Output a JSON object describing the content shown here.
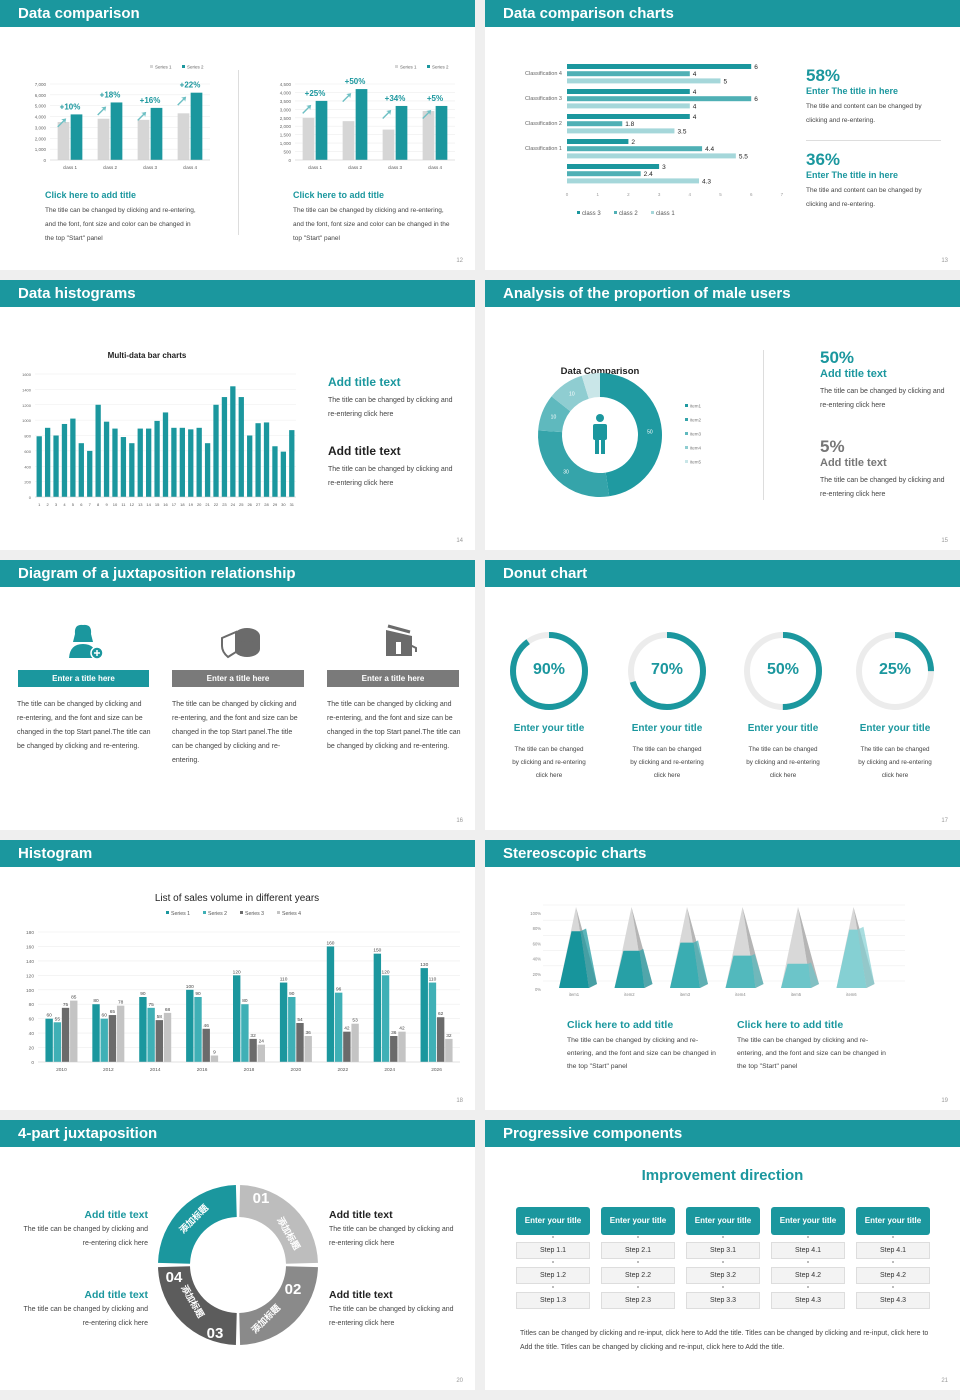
{
  "colors": {
    "teal": "#1b979e",
    "teal2": "#3aa9ae",
    "teal3": "#6fc0c4",
    "gray": "#d6d6d6",
    "dark": "#6b6b6b",
    "light": "#bdbdbd"
  },
  "s12": {
    "header": "Data comparison",
    "page": "12",
    "left": {
      "title": "Click here to add title",
      "text": "The title can be changed by clicking and re-entering, and the font, font size and color can be changed in the top \"Start\" panel"
    },
    "right": {
      "title": "Click here to add title",
      "text": "The title can be changed by clicking and re-entering, and the font, font size and color can be changed in the top \"Start\" panel"
    }
  },
  "s13": {
    "header": "Data comparison charts",
    "page": "13",
    "stats": [
      {
        "value": "58%",
        "title": "Enter The title in here",
        "text": "The title and content can be changed by clicking and re-entering."
      },
      {
        "value": "36%",
        "title": "Enter The title in here",
        "text": "The title and content can be changed by clicking and re-entering."
      }
    ]
  },
  "s14": {
    "header": "Data histograms",
    "page": "14",
    "blocks": [
      {
        "title": "Add title text",
        "text": "The title can be changed by clicking and re-entering click here"
      },
      {
        "title": "Add title text",
        "text": "The title can be changed by clicking and re-entering click here"
      }
    ]
  },
  "s15": {
    "header": "Analysis of the proportion of male users",
    "page": "15",
    "icon": "male-user-icon",
    "stats": [
      {
        "value": "50%",
        "title": "Add title text",
        "text": "The title can be changed by clicking and re-entering click here"
      },
      {
        "value": "5%",
        "title": "Add title text",
        "text": "The title can be changed by clicking and re-entering click here"
      }
    ]
  },
  "s16": {
    "header": "Diagram of a juxtaposition relationship",
    "page": "16",
    "cols": [
      {
        "icon": "add-user-icon",
        "title": "Enter a title here",
        "text": "The title can be changed by clicking and re-entering, and the font and size can be changed in the top Start panel.The title can be changed by clicking and re-entering."
      },
      {
        "icon": "pie-chart-icon",
        "title": "Enter a title here",
        "text": "The title can be changed by clicking and re-entering, and the font and size can be changed in the top Start panel.The title can be changed by clicking and re-entering."
      },
      {
        "icon": "building-chart-icon",
        "title": "Enter a title here",
        "text": "The title can be changed by clicking and re-entering, and the font and size can be changed in the top Start panel.The title can be changed by clicking and re-entering."
      }
    ]
  },
  "s17": {
    "header": "Donut chart",
    "page": "17",
    "rings": [
      {
        "label": "90%",
        "value": 90,
        "title": "Enter your title",
        "text": "The title can be changed by clicking and re-entering click here"
      },
      {
        "label": "70%",
        "value": 70,
        "title": "Enter your title",
        "text": "The title can be changed by clicking and re-entering click here"
      },
      {
        "label": "50%",
        "value": 50,
        "title": "Enter your title",
        "text": "The title can be changed by clicking and re-entering click here"
      },
      {
        "label": "25%",
        "value": 25,
        "title": "Enter your title",
        "text": "The title can be changed by clicking and re-entering click here"
      }
    ]
  },
  "s18": {
    "header": "Histogram",
    "page": "18"
  },
  "s19": {
    "header": "Stereoscopic charts",
    "page": "19",
    "blocks": [
      {
        "title": "Click here to add title",
        "text": "The title can be changed by clicking and re-entering, and the font and size can be changed in the top \"Start\" panel"
      },
      {
        "title": "Click here to add title",
        "text": "The title can be changed by clicking and re-entering, and the font and size can be changed in the top \"Start\" panel"
      }
    ]
  },
  "s20": {
    "header": "4-part juxtaposition",
    "page": "20",
    "segments": [
      {
        "num": "01",
        "label": "添加标题"
      },
      {
        "num": "02",
        "label": "添加标题"
      },
      {
        "num": "03",
        "label": "添加标题"
      },
      {
        "num": "04",
        "label": "添加标题"
      }
    ],
    "blocks": [
      {
        "title": "Add title text",
        "text": "The title can be changed by clicking and re-entering click here"
      },
      {
        "title": "Add title text",
        "text": "The title can be changed by clicking and re-entering click here"
      },
      {
        "title": "Add title text",
        "text": "The title can be changed by clicking and re-entering click here"
      },
      {
        "title": "Add title text",
        "text": "The title can be changed by clicking and re-entering click here"
      }
    ]
  },
  "s21": {
    "header": "Progressive components",
    "page": "21",
    "title": "Improvement direction",
    "columns": [
      {
        "title": "Enter your title",
        "steps": [
          "Step 1.1",
          "Step 1.2",
          "Step 1.3"
        ]
      },
      {
        "title": "Enter your title",
        "steps": [
          "Step 2.1",
          "Step 2.2",
          "Step 2.3"
        ]
      },
      {
        "title": "Enter your title",
        "steps": [
          "Step 3.1",
          "Step 3.2",
          "Step 3.3"
        ]
      },
      {
        "title": "Enter your title",
        "steps": [
          "Step 4.1",
          "Step 4.2",
          "Step 4.3"
        ]
      },
      {
        "title": "Enter your title",
        "steps": [
          "Step 4.1",
          "Step 4.2",
          "Step 4.3"
        ]
      }
    ],
    "text": "Titles can be changed by clicking and re-input, click here to Add the title. Titles can be changed by clicking and re-input, click here to Add the title. Titles can be changed by clicking and re-input, click here to Add the title."
  },
  "chart_data": [
    {
      "id": "s12a",
      "type": "bar",
      "categories": [
        "class 1",
        "class 2",
        "class 3",
        "class 4"
      ],
      "series": [
        {
          "name": "Series 1",
          "values": [
            3500,
            3800,
            3700,
            4300
          ]
        },
        {
          "name": "Series 2",
          "values": [
            4200,
            5300,
            4800,
            6200
          ]
        }
      ],
      "annotations": [
        "+10%",
        "+18%",
        "+16%",
        "+22%"
      ],
      "ylim": [
        0,
        7000
      ],
      "yticks": [
        "0",
        "1,000",
        "2,000",
        "3,000",
        "4,000",
        "5,000",
        "6,000",
        "7,000"
      ],
      "legend": "top-right",
      "grid": true
    },
    {
      "id": "s12b",
      "type": "bar",
      "categories": [
        "class 1",
        "class 2",
        "class 3",
        "class 4"
      ],
      "series": [
        {
          "name": "Series 1",
          "values": [
            2500,
            2300,
            1800,
            2900
          ]
        },
        {
          "name": "Series 2",
          "values": [
            3500,
            4200,
            3200,
            3200
          ]
        }
      ],
      "annotations": [
        "+25%",
        "+50%",
        "+34%",
        "+5%"
      ],
      "ylim": [
        0,
        4500
      ],
      "yticks": [
        "0",
        "500",
        "1,000",
        "1,500",
        "2,000",
        "2,500",
        "3,000",
        "3,500",
        "4,000",
        "4,500"
      ],
      "legend": "top-right",
      "grid": true
    },
    {
      "id": "s13",
      "type": "bar",
      "orientation": "horizontal",
      "categories": [
        "Classification 4",
        "Classification 3",
        "Classification 2",
        "Classification 1",
        ""
      ],
      "series": [
        {
          "name": "class 3",
          "values": [
            6,
            4,
            4,
            2,
            3
          ]
        },
        {
          "name": "class 2",
          "values": [
            4,
            6,
            1.8,
            4.4,
            2.4
          ]
        },
        {
          "name": "class 1",
          "values": [
            5,
            4,
            3.5,
            5.5,
            4.3
          ]
        }
      ],
      "xlim": [
        0,
        7
      ],
      "xticks": [
        "0",
        "1",
        "2",
        "3",
        "4",
        "5",
        "6",
        "7"
      ],
      "legend": "bottom"
    },
    {
      "id": "s14",
      "type": "bar",
      "title": "Multi-data bar charts",
      "categories": [
        "1",
        "2",
        "3",
        "4",
        "5",
        "6",
        "7",
        "8",
        "9",
        "10",
        "11",
        "12",
        "13",
        "14",
        "15",
        "16",
        "17",
        "18",
        "19",
        "20",
        "21",
        "22",
        "23",
        "24",
        "25",
        "26",
        "27",
        "28",
        "29",
        "30",
        "31"
      ],
      "values": [
        790,
        900,
        800,
        950,
        1020,
        700,
        600,
        1200,
        980,
        890,
        780,
        700,
        890,
        890,
        990,
        1100,
        900,
        900,
        880,
        900,
        700,
        1200,
        1300,
        1440,
        1300,
        800,
        960,
        970,
        660,
        590,
        870
      ],
      "ylim": [
        0,
        1600
      ],
      "yticks": [
        "0",
        "200",
        "400",
        "600",
        "800",
        "1000",
        "1200",
        "1400",
        "1600"
      ],
      "grid": true
    },
    {
      "id": "s15",
      "type": "pie",
      "title": "Data Comparison",
      "categories": [
        "item1",
        "item2",
        "item3",
        "item4",
        "item5"
      ],
      "values": [
        50,
        30,
        10,
        10,
        5
      ],
      "labels": [
        "50",
        "30",
        "10",
        "10",
        ""
      ],
      "legend": "right"
    },
    {
      "id": "s18",
      "type": "bar",
      "title": "List of sales volume in different years",
      "categories": [
        "2010",
        "2012",
        "2014",
        "2016",
        "2018",
        "2020",
        "2022",
        "2024",
        "2026"
      ],
      "series": [
        {
          "name": "Series 1",
          "values": [
            60,
            80,
            90,
            100,
            120,
            110,
            160,
            150,
            130
          ]
        },
        {
          "name": "Series 2",
          "values": [
            55,
            60,
            75,
            90,
            80,
            90,
            96,
            120,
            110
          ]
        },
        {
          "name": "Series 3",
          "values": [
            75,
            65,
            58,
            46,
            32,
            54,
            42,
            36,
            62
          ]
        },
        {
          "name": "Series 4",
          "values": [
            85,
            78,
            68,
            9,
            24,
            36,
            53,
            42,
            32
          ]
        }
      ],
      "ylim": [
        0,
        180
      ],
      "yticks": [
        "0",
        "20",
        "40",
        "60",
        "80",
        "100",
        "120",
        "140",
        "160",
        "180"
      ],
      "legend": "top",
      "grid": true
    },
    {
      "id": "s19",
      "type": "bar",
      "style": "3d-pyramid",
      "categories": [
        "item1",
        "item2",
        "item3",
        "item4",
        "item5",
        "item6"
      ],
      "values": [
        70,
        46,
        56,
        40,
        30,
        72
      ],
      "ylim": [
        0,
        100
      ],
      "yticks": [
        "0%",
        "20%",
        "40%",
        "60%",
        "80%",
        "100%"
      ],
      "grid": true
    }
  ]
}
